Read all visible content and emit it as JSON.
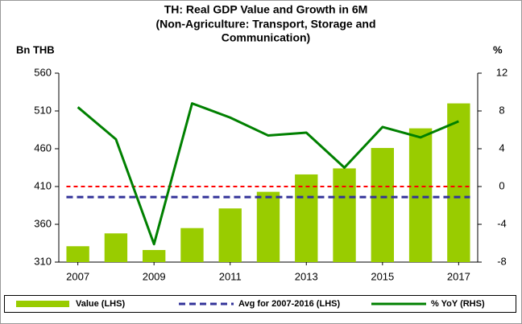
{
  "chart_data": {
    "type": "bar_line",
    "title": [
      "TH: Real GDP Value and Growth in 6M",
      "(Non-Agriculture: Transport, Storage and",
      "Communication)"
    ],
    "y_label": "Bn THB",
    "y2_label": "%",
    "x": [
      2007,
      2008,
      2009,
      2010,
      2011,
      2012,
      2013,
      2014,
      2015,
      2016,
      2017
    ],
    "xticks": [
      2007,
      2009,
      2011,
      2013,
      2015,
      2017
    ],
    "series": [
      {
        "name": "Value (LHS)",
        "color": "#99cc00",
        "kind": "bar",
        "axis": "y",
        "values": [
          331,
          348,
          326,
          355,
          381,
          403,
          426,
          434,
          461,
          487,
          520
        ]
      },
      {
        "name": "Avg for 2007-2016 (LHS)",
        "color": "#333399",
        "kind": "hline",
        "axis": "y",
        "value": 396
      },
      {
        "name": "% YoY (RHS)",
        "color": "#008000",
        "kind": "line",
        "axis": "y2",
        "values": [
          8.4,
          5.0,
          -6.1,
          8.8,
          7.3,
          5.4,
          5.7,
          2.0,
          6.3,
          5.2,
          6.9
        ]
      }
    ],
    "ref_line": {
      "axis": "y2",
      "value": 0,
      "color": "#ff0000"
    },
    "ylim": [
      310,
      560
    ],
    "yticks": [
      310,
      360,
      410,
      460,
      510,
      560
    ],
    "y2lim": [
      -8,
      12
    ],
    "y2ticks": [
      -8,
      -4,
      0,
      4,
      8,
      12
    ],
    "grid": false
  }
}
